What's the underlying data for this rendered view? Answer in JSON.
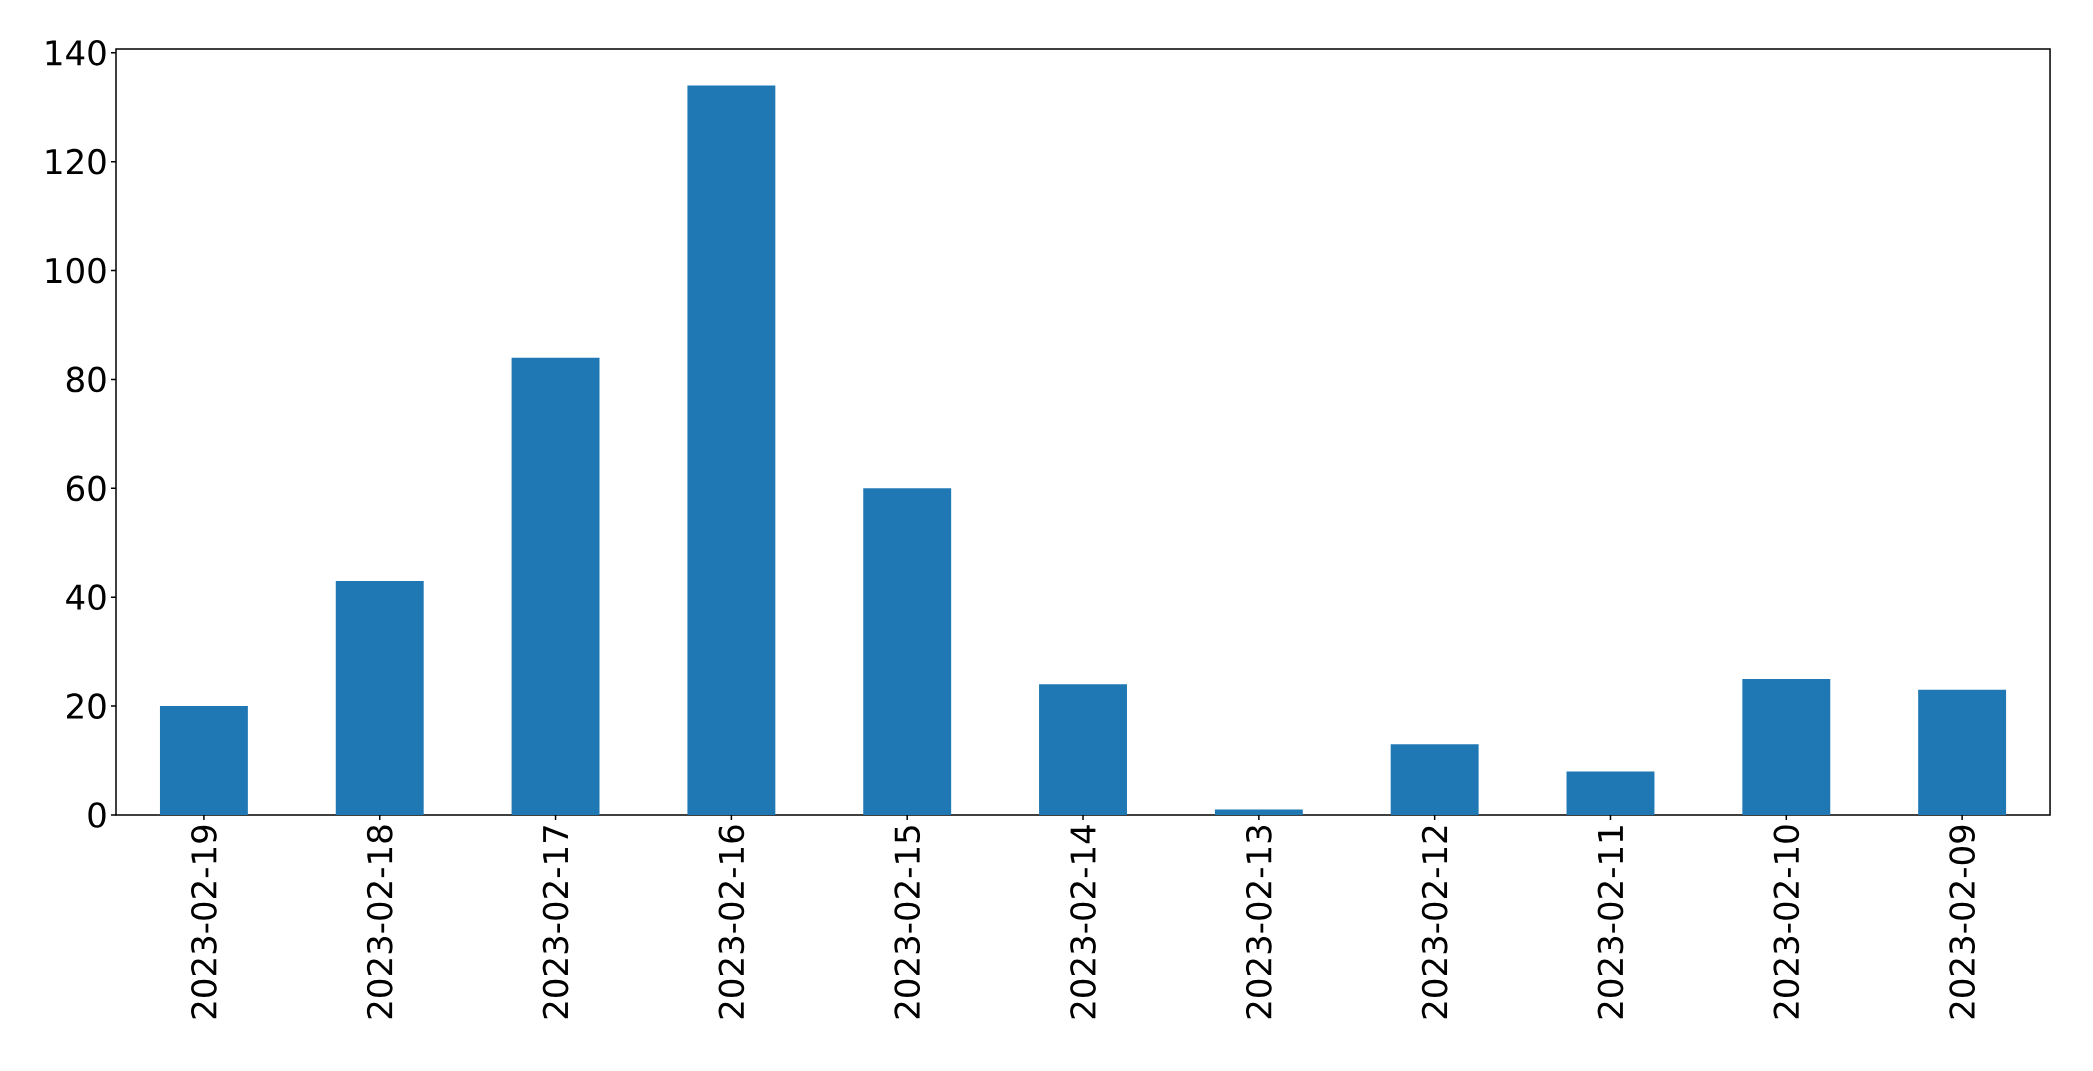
{
  "chart_data": {
    "type": "bar",
    "categories": [
      "2023-02-19",
      "2023-02-18",
      "2023-02-17",
      "2023-02-16",
      "2023-02-15",
      "2023-02-14",
      "2023-02-13",
      "2023-02-12",
      "2023-02-11",
      "2023-02-10",
      "2023-02-09"
    ],
    "values": [
      20,
      43,
      84,
      134,
      60,
      24,
      1,
      13,
      8,
      25,
      23
    ],
    "color": "#1f77b4",
    "ylim": [
      0,
      140.7
    ],
    "yticks": [
      0,
      20,
      40,
      60,
      80,
      100,
      120,
      140
    ]
  }
}
